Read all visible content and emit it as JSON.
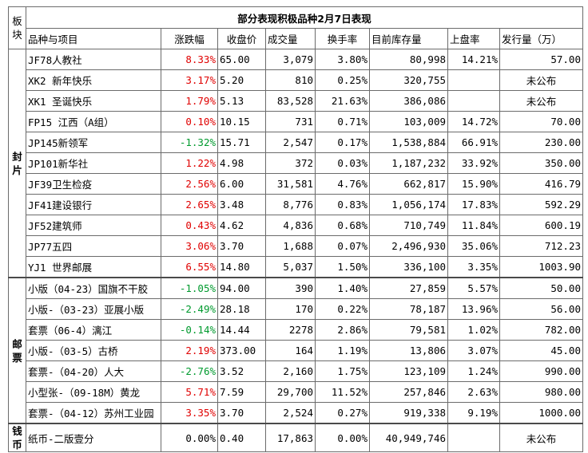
{
  "title": "部分表现积极品种2月7日表现",
  "corner_label": "板块",
  "headers": {
    "name": "品种与项目",
    "change": "涨跌幅",
    "close": "收盘价",
    "volume": "成交量",
    "turnover": "换手率",
    "inventory": "目前库存量",
    "listing_rate": "上盘率",
    "issue": "发行量（万）"
  },
  "sections": [
    {
      "category": "封片",
      "rows": [
        {
          "name": "JF78人教社",
          "change": "8.33%",
          "dir": "up",
          "close": "65.00",
          "volume": "3,079",
          "turnover": "3.80%",
          "inventory": "80,998",
          "listing_rate": "14.21%",
          "issue": "57.00"
        },
        {
          "name": "XK2 新年快乐",
          "change": "3.17%",
          "dir": "up",
          "close": "5.20",
          "volume": "810",
          "turnover": "0.25%",
          "inventory": "320,755",
          "listing_rate": "",
          "issue": "未公布"
        },
        {
          "name": "XK1 圣诞快乐",
          "change": "1.79%",
          "dir": "up",
          "close": "5.13",
          "volume": "83,528",
          "turnover": "21.63%",
          "inventory": "386,086",
          "listing_rate": "",
          "issue": "未公布"
        },
        {
          "name": "FP15 江西（A组）",
          "change": "0.10%",
          "dir": "up",
          "close": "10.15",
          "volume": "731",
          "turnover": "0.71%",
          "inventory": "103,009",
          "listing_rate": "14.72%",
          "issue": "70.00"
        },
        {
          "name": "JP145新领军",
          "change": "-1.32%",
          "dir": "down",
          "close": "15.71",
          "volume": "2,547",
          "turnover": "0.17%",
          "inventory": "1,538,884",
          "listing_rate": "66.91%",
          "issue": "230.00"
        },
        {
          "name": "JP101新华社",
          "change": "1.22%",
          "dir": "up",
          "close": "4.98",
          "volume": "372",
          "turnover": "0.03%",
          "inventory": "1,187,232",
          "listing_rate": "33.92%",
          "issue": "350.00"
        },
        {
          "name": "JF39卫生检疫",
          "change": "2.56%",
          "dir": "up",
          "close": "6.00",
          "volume": "31,581",
          "turnover": "4.76%",
          "inventory": "662,817",
          "listing_rate": "15.90%",
          "issue": "416.79"
        },
        {
          "name": "JF41建设银行",
          "change": "2.65%",
          "dir": "up",
          "close": "3.48",
          "volume": "8,776",
          "turnover": "0.83%",
          "inventory": "1,056,174",
          "listing_rate": "17.83%",
          "issue": "592.29"
        },
        {
          "name": "JF52建筑师",
          "change": "0.43%",
          "dir": "up",
          "close": "4.62",
          "volume": "4,836",
          "turnover": "0.68%",
          "inventory": "710,749",
          "listing_rate": "11.84%",
          "issue": "600.19"
        },
        {
          "name": "JP77五四",
          "change": "3.06%",
          "dir": "up",
          "close": "3.70",
          "volume": "1,688",
          "turnover": "0.07%",
          "inventory": "2,496,930",
          "listing_rate": "35.06%",
          "issue": "712.23"
        },
        {
          "name": "YJ1 世界邮展",
          "change": "6.55%",
          "dir": "up",
          "close": "14.80",
          "volume": "5,037",
          "turnover": "1.50%",
          "inventory": "336,100",
          "listing_rate": "3.35%",
          "issue": "1003.90"
        }
      ]
    },
    {
      "category": "邮票",
      "rows": [
        {
          "name": "小版（04-23）国旗不干胶",
          "change": "-1.05%",
          "dir": "down",
          "close": "94.00",
          "volume": "390",
          "turnover": "1.40%",
          "inventory": "27,859",
          "listing_rate": "5.57%",
          "issue": "50.00"
        },
        {
          "name": "小版-（03-23）亚展小版",
          "change": "-2.49%",
          "dir": "down",
          "close": "28.18",
          "volume": "170",
          "turnover": "0.22%",
          "inventory": "78,187",
          "listing_rate": "13.96%",
          "issue": "56.00"
        },
        {
          "name": "套票（06-4）漓江",
          "change": "-0.14%",
          "dir": "down",
          "close": "14.44",
          "volume": "2278",
          "turnover": "2.86%",
          "inventory": "79,581",
          "listing_rate": "1.02%",
          "issue": "782.00"
        },
        {
          "name": "小版-（03-5）古桥",
          "change": "2.19%",
          "dir": "up",
          "close": "373.00",
          "volume": "164",
          "turnover": "1.19%",
          "inventory": "13,806",
          "listing_rate": "3.07%",
          "issue": "45.00"
        },
        {
          "name": "套票-（04-20）人大",
          "change": "-2.76%",
          "dir": "down",
          "close": "3.52",
          "volume": "2,160",
          "turnover": "1.75%",
          "inventory": "123,109",
          "listing_rate": "1.24%",
          "issue": "990.00"
        },
        {
          "name": "小型张-（09-18M）黄龙",
          "change": "5.71%",
          "dir": "up",
          "close": "7.59",
          "volume": "29,700",
          "turnover": "11.52%",
          "inventory": "257,846",
          "listing_rate": "2.63%",
          "issue": "980.00"
        },
        {
          "name": "套票-（04-12）苏州工业园",
          "change": "3.35%",
          "dir": "up",
          "close": "3.70",
          "volume": "2,524",
          "turnover": "0.27%",
          "inventory": "919,338",
          "listing_rate": "9.19%",
          "issue": "1000.00"
        }
      ]
    },
    {
      "category": "钱币",
      "rows": [
        {
          "name": "纸币-二版壹分",
          "change": "0.00%",
          "dir": "flat",
          "close": "0.40",
          "volume": "17,863",
          "turnover": "0.00%",
          "inventory": "40,949,746",
          "listing_rate": "",
          "issue": "未公布"
        }
      ]
    }
  ],
  "colors": {
    "up": "#e00000",
    "down": "#009a2e",
    "title": "#1f5bd6",
    "header": "#8b1a8b"
  }
}
